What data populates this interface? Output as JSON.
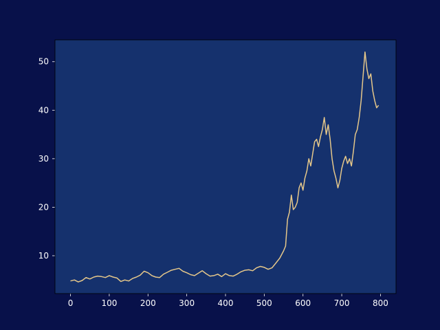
{
  "chart_data": {
    "type": "line",
    "title": "",
    "xlabel": "",
    "ylabel": "",
    "xlim": [
      -40,
      840
    ],
    "ylim": [
      2.2,
      54.5
    ],
    "grid": false,
    "xticks": [
      0,
      100,
      200,
      300,
      400,
      500,
      600,
      700,
      800
    ],
    "yticks": [
      10,
      20,
      30,
      40,
      50
    ],
    "colors": {
      "figure_bg": "#08114a",
      "axes_bg": "#15316d",
      "line": "#e6c88a",
      "text": "#ffffff",
      "spine": "#000000"
    },
    "series": [
      {
        "x": [
          0,
          10,
          20,
          30,
          40,
          50,
          60,
          70,
          80,
          90,
          100,
          110,
          120,
          130,
          140,
          150,
          160,
          170,
          180,
          190,
          200,
          210,
          220,
          230,
          240,
          250,
          260,
          270,
          280,
          290,
          300,
          310,
          320,
          330,
          340,
          350,
          360,
          370,
          380,
          390,
          400,
          410,
          420,
          430,
          440,
          450,
          460,
          470,
          480,
          490,
          500,
          510,
          520,
          530,
          540,
          550,
          555,
          560,
          565,
          570,
          575,
          580,
          585,
          590,
          595,
          600,
          605,
          610,
          615,
          620,
          625,
          630,
          635,
          640,
          645,
          650,
          655,
          660,
          665,
          670,
          675,
          680,
          685,
          690,
          695,
          700,
          705,
          710,
          715,
          720,
          725,
          730,
          735,
          740,
          745,
          750,
          755,
          760,
          765,
          770,
          775,
          780,
          785,
          790,
          795
        ],
        "y": [
          4.8,
          5.0,
          4.6,
          4.9,
          5.5,
          5.2,
          5.6,
          5.8,
          5.7,
          5.5,
          5.9,
          5.6,
          5.4,
          4.7,
          5.0,
          4.8,
          5.3,
          5.6,
          6.0,
          6.8,
          6.5,
          5.9,
          5.6,
          5.5,
          6.2,
          6.6,
          7.0,
          7.2,
          7.4,
          6.8,
          6.5,
          6.1,
          5.9,
          6.4,
          6.9,
          6.3,
          5.8,
          5.9,
          6.2,
          5.7,
          6.3,
          5.9,
          5.8,
          6.2,
          6.7,
          7.0,
          7.1,
          6.9,
          7.5,
          7.8,
          7.6,
          7.2,
          7.5,
          8.5,
          9.5,
          11.0,
          12.0,
          17.5,
          19.0,
          22.5,
          19.5,
          20.0,
          21.0,
          24.0,
          25.0,
          23.5,
          26.0,
          27.5,
          30.0,
          28.5,
          31.0,
          33.5,
          34.0,
          32.5,
          34.5,
          36.0,
          38.5,
          35.0,
          37.0,
          34.0,
          30.0,
          27.5,
          26.0,
          24.0,
          25.5,
          28.0,
          29.5,
          30.5,
          29.0,
          30.0,
          28.5,
          31.5,
          35.0,
          36.0,
          38.5,
          42.0,
          47.0,
          52.0,
          48.5,
          46.5,
          47.5,
          44.0,
          42.0,
          40.5,
          41.0
        ]
      }
    ]
  }
}
